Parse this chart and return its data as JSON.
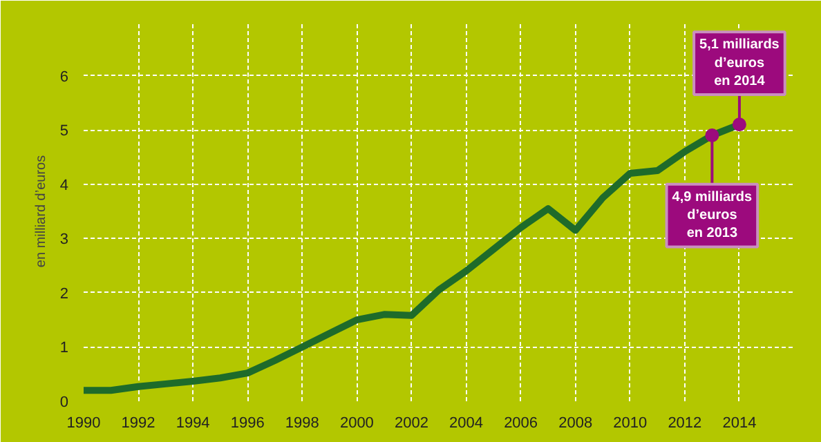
{
  "chart_data": {
    "type": "line",
    "ylabel": "en milliard d’euros",
    "x": [
      1990,
      1991,
      1992,
      1993,
      1994,
      1995,
      1996,
      1997,
      1998,
      1999,
      2000,
      2001,
      2002,
      2003,
      2004,
      2005,
      2006,
      2007,
      2008,
      2009,
      2010,
      2011,
      2012,
      2013,
      2014
    ],
    "series": [
      {
        "color": "#1e6b2a",
        "values": [
          0.2,
          0.2,
          0.27,
          0.32,
          0.37,
          0.43,
          0.52,
          0.75,
          1.0,
          1.25,
          1.5,
          1.6,
          1.58,
          2.05,
          2.4,
          2.8,
          3.2,
          3.55,
          3.15,
          3.75,
          4.2,
          4.25,
          4.6,
          4.9,
          5.1
        ]
      }
    ],
    "xlim": [
      1990,
      2016
    ],
    "ylim": [
      0,
      7
    ],
    "xticks": [
      1990,
      1992,
      1994,
      1996,
      1998,
      2000,
      2002,
      2004,
      2006,
      2008,
      2010,
      2012,
      2014
    ],
    "yticks": [
      0,
      1,
      2,
      3,
      4,
      5,
      6
    ],
    "grid": true,
    "annotations": [
      {
        "text": "4,9 milliards\nd’euros\nen 2013",
        "x": 2013,
        "y": 4.9
      },
      {
        "text": "5,1 milliards\nd’euros\nen 2014",
        "x": 2014,
        "y": 5.1
      }
    ]
  }
}
